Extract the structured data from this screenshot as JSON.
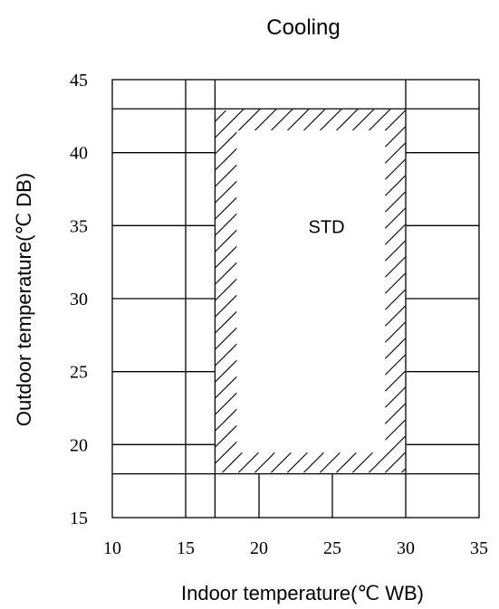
{
  "chart_data": {
    "type": "area",
    "title": "Cooling",
    "xlabel": "Indoor temperature(℃ WB)",
    "ylabel": "Outdoor temperature(℃ DB)",
    "xlim": [
      10,
      35
    ],
    "ylim": [
      15,
      45
    ],
    "xticks": [
      10,
      15,
      20,
      25,
      30,
      35
    ],
    "yticks": [
      15,
      20,
      25,
      30,
      35,
      40,
      45
    ],
    "xtick_labels": [
      "10",
      "15",
      "20",
      "25",
      "30",
      "35"
    ],
    "ytick_labels": [
      "15",
      "20",
      "25",
      "30",
      "35",
      "40",
      "45"
    ],
    "grid": {
      "vertical_full": [
        15,
        17,
        30
      ],
      "vertical_bottom_band": [
        20,
        25
      ],
      "horizontal_full": [
        18,
        43
      ],
      "horizontal_side": [
        20,
        25,
        30,
        35,
        40
      ]
    },
    "operating_zone": {
      "label": "STD",
      "x_range": [
        17,
        30
      ],
      "y_range": [
        18,
        43
      ],
      "label_position": [
        24.6,
        34.5
      ]
    }
  }
}
